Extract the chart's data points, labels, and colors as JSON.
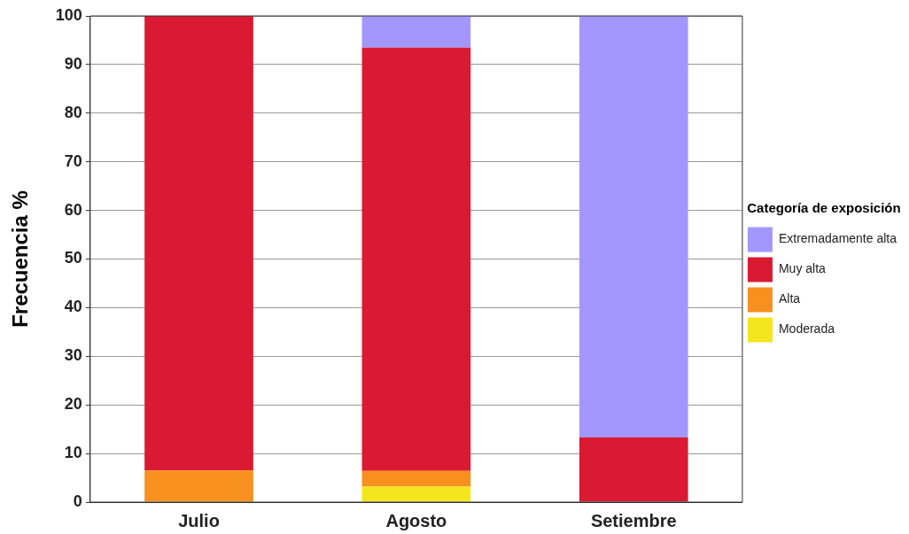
{
  "chart_data": {
    "type": "bar",
    "stacked": true,
    "ylabel": "Frecuencia %",
    "legend_title": "Categoría de exposición",
    "legend": "right",
    "categories": [
      "Julio",
      "Agosto",
      "Setiembre"
    ],
    "series": [
      {
        "name": "Moderada",
        "color": "#f4e61c",
        "values": [
          0,
          3.2,
          0
        ]
      },
      {
        "name": "Alta",
        "color": "#f7901e",
        "values": [
          6.5,
          3.2,
          0
        ]
      },
      {
        "name": "Muy alta",
        "color": "#da1a32",
        "values": [
          93.5,
          87.1,
          13.3
        ]
      },
      {
        "name": "Extremadamente alta",
        "color": "#a397fd",
        "values": [
          0,
          6.5,
          86.7
        ]
      }
    ],
    "ylim": [
      0,
      100
    ],
    "yticks": [
      0,
      10,
      20,
      30,
      40,
      50,
      60,
      70,
      80,
      90,
      100
    ],
    "grid": "y"
  }
}
